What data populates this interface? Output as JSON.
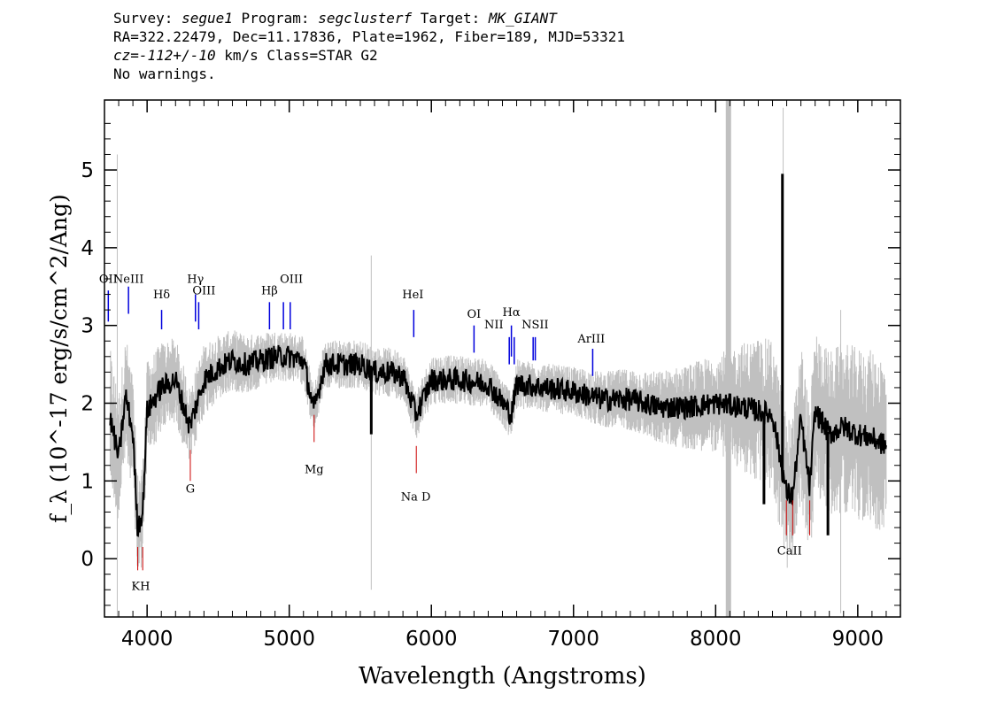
{
  "header": {
    "line1": {
      "p1": "Survey: ",
      "survey": "segue1",
      "p2": " Program: ",
      "program": "segclusterf",
      "p3": " Target: ",
      "target": "MK_GIANT"
    },
    "line2": "RA=322.22479, Dec=11.17836, Plate=1962, Fiber=189, MJD=53321",
    "line3": {
      "cz": "cz=-112+/-10",
      "rest": " km/s Class=STAR G2"
    },
    "line4": "No warnings."
  },
  "chart_data": {
    "type": "line",
    "xlabel": "Wavelength (Angstroms)",
    "ylabel": "f_λ (10^-17 erg/s/cm^2/Ang)",
    "xlim": [
      3700,
      9300
    ],
    "ylim": [
      -0.75,
      5.9
    ],
    "x_ticks": [
      4000,
      5000,
      6000,
      7000,
      8000,
      9000
    ],
    "y_ticks": [
      0,
      1,
      2,
      3,
      4,
      5
    ],
    "colors": {
      "flux": "#000000",
      "noise": "#c0c0c0",
      "emission": "#0000dd",
      "absorption": "#cc0000",
      "masked_band": "#c0c0c0"
    },
    "masked_band_x": 8090,
    "series": [
      {
        "role": "flux",
        "anchor_points": [
          [
            3740,
            1.8
          ],
          [
            3800,
            1.3
          ],
          [
            3850,
            2.1
          ],
          [
            3900,
            1.6
          ],
          [
            3933,
            0.4
          ],
          [
            3969,
            0.6
          ],
          [
            4000,
            1.9
          ],
          [
            4100,
            2.2
          ],
          [
            4200,
            2.3
          ],
          [
            4300,
            1.7
          ],
          [
            4400,
            2.3
          ],
          [
            4500,
            2.45
          ],
          [
            4600,
            2.55
          ],
          [
            4700,
            2.5
          ],
          [
            4800,
            2.55
          ],
          [
            4900,
            2.6
          ],
          [
            5000,
            2.6
          ],
          [
            5100,
            2.55
          ],
          [
            5172,
            1.9
          ],
          [
            5250,
            2.5
          ],
          [
            5400,
            2.5
          ],
          [
            5500,
            2.5
          ],
          [
            5600,
            2.4
          ],
          [
            5700,
            2.4
          ],
          [
            5800,
            2.35
          ],
          [
            5893,
            1.85
          ],
          [
            6000,
            2.3
          ],
          [
            6200,
            2.3
          ],
          [
            6400,
            2.25
          ],
          [
            6563,
            1.85
          ],
          [
            6600,
            2.25
          ],
          [
            6800,
            2.2
          ],
          [
            7000,
            2.15
          ],
          [
            7200,
            2.05
          ],
          [
            7400,
            2.05
          ],
          [
            7600,
            1.95
          ],
          [
            7800,
            1.95
          ],
          [
            8000,
            2.0
          ],
          [
            8200,
            1.95
          ],
          [
            8400,
            1.85
          ],
          [
            8498,
            0.85
          ],
          [
            8542,
            0.8
          ],
          [
            8600,
            1.8
          ],
          [
            8662,
            0.9
          ],
          [
            8700,
            1.9
          ],
          [
            8800,
            1.6
          ],
          [
            8900,
            1.7
          ],
          [
            9000,
            1.6
          ],
          [
            9100,
            1.55
          ],
          [
            9200,
            1.45
          ]
        ],
        "spikes": [
          [
            5577,
            1.6
          ],
          [
            8470,
            4.95
          ],
          [
            8340,
            0.7
          ],
          [
            8790,
            0.3
          ]
        ]
      },
      {
        "role": "noise",
        "anchor_points": [
          [
            3700,
            0.45
          ],
          [
            4000,
            0.3
          ],
          [
            4500,
            0.2
          ],
          [
            5000,
            0.15
          ],
          [
            6000,
            0.15
          ],
          [
            7000,
            0.15
          ],
          [
            7500,
            0.2
          ],
          [
            8000,
            0.3
          ],
          [
            8300,
            0.45
          ],
          [
            8700,
            0.5
          ],
          [
            9200,
            0.55
          ]
        ]
      }
    ],
    "emission_lines": [
      {
        "label": "OII",
        "x": 3727
      },
      {
        "label": "NeIII",
        "x": 3869
      },
      {
        "label": "Hδ",
        "x": 4102
      },
      {
        "label": "Hγ",
        "x": 4340
      },
      {
        "label": "OIII",
        "x": 4363
      },
      {
        "label": "Hβ",
        "x": 4861
      },
      {
        "label": "OIII",
        "x": 4959
      },
      {
        "label": "OIII",
        "x": 5007
      },
      {
        "label": "HeI",
        "x": 5876
      },
      {
        "label": "OI",
        "x": 6300
      },
      {
        "label": "NII",
        "x": 6548
      },
      {
        "label": "Hα",
        "x": 6563
      },
      {
        "label": "NII",
        "x": 6583
      },
      {
        "label": "SII",
        "x": 6716
      },
      {
        "label": "SII",
        "x": 6731
      },
      {
        "label": "ArIII",
        "x": 7135
      }
    ],
    "absorption_lines": [
      {
        "label": "K",
        "x": 3934
      },
      {
        "label": "H",
        "x": 3969
      },
      {
        "label": "G",
        "x": 4304
      },
      {
        "label": "Mg",
        "x": 5175
      },
      {
        "label": "Na D",
        "x": 5894
      },
      {
        "label": "CaII",
        "x": 8498
      },
      {
        "label": "CaII",
        "x": 8542
      },
      {
        "label": "CaII",
        "x": 8662
      }
    ],
    "emission_labels": [
      "OII",
      "NeIII",
      "Hδ",
      "Hγ",
      "OIII",
      "Hβ",
      "OIII",
      "HeI",
      "OI",
      "NII",
      "Hα",
      "NSII",
      "ArIII"
    ],
    "absorption_labels": [
      "KH",
      "G",
      "Mg",
      "Na D",
      "CaII"
    ]
  }
}
